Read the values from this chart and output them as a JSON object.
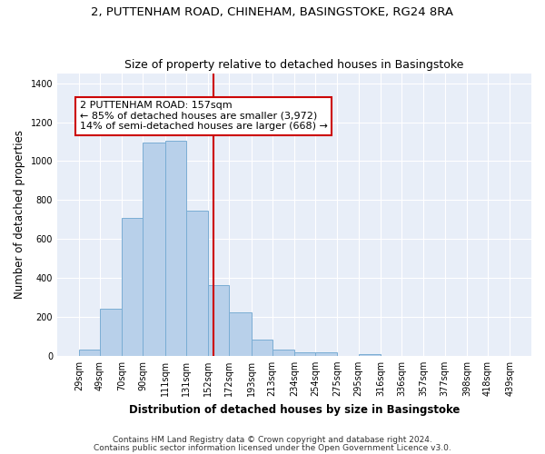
{
  "title1": "2, PUTTENHAM ROAD, CHINEHAM, BASINGSTOKE, RG24 8RA",
  "title2": "Size of property relative to detached houses in Basingstoke",
  "xlabel": "Distribution of detached houses by size in Basingstoke",
  "ylabel": "Number of detached properties",
  "footer1": "Contains HM Land Registry data © Crown copyright and database right 2024.",
  "footer2": "Contains public sector information licensed under the Open Government Licence v3.0.",
  "annotation_line1": "2 PUTTENHAM ROAD: 157sqm",
  "annotation_line2": "← 85% of detached houses are smaller (3,972)",
  "annotation_line3": "14% of semi-detached houses are larger (668) →",
  "bar_color": "#b8d0ea",
  "bar_edge_color": "#7aadd4",
  "bg_color": "#e8eef8",
  "grid_color": "#ffffff",
  "vline_color": "#cc0000",
  "vline_x": 157,
  "bin_edges": [
    29,
    49,
    70,
    90,
    111,
    131,
    152,
    172,
    193,
    213,
    234,
    254,
    275,
    295,
    316,
    336,
    357,
    377,
    398,
    418,
    439
  ],
  "bar_heights": [
    30,
    240,
    710,
    1095,
    1105,
    745,
    365,
    225,
    83,
    30,
    20,
    18,
    0,
    10,
    0,
    0,
    0,
    0,
    0,
    0
  ],
  "ylim": [
    0,
    1450
  ],
  "yticks": [
    0,
    200,
    400,
    600,
    800,
    1000,
    1200,
    1400
  ],
  "title_fontsize": 9.5,
  "subtitle_fontsize": 9,
  "axis_label_fontsize": 8.5,
  "tick_fontsize": 7,
  "footer_fontsize": 6.5,
  "annot_fontsize": 8
}
